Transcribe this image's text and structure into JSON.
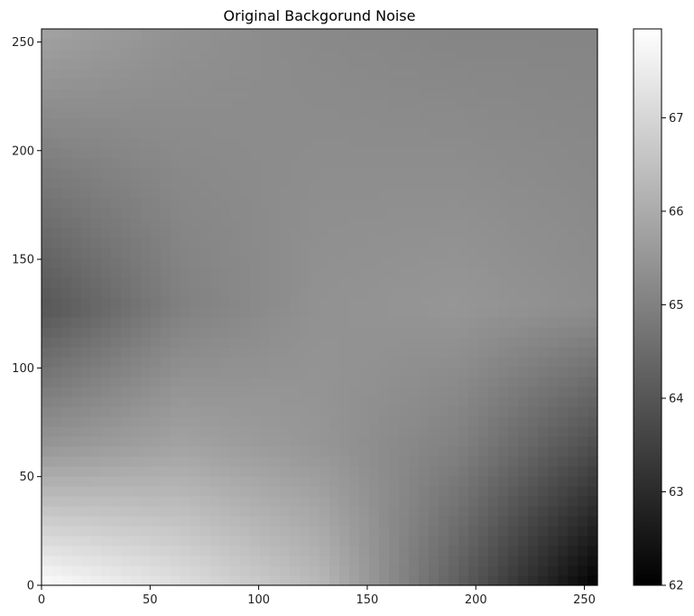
{
  "chart_data": {
    "type": "heatmap",
    "title": "Original Backgorund Noise",
    "xlabel": "",
    "ylabel": "",
    "colormap": "gray",
    "xlim": [
      0,
      256
    ],
    "ylim": [
      0,
      256
    ],
    "origin": "lower",
    "x_ticks": [
      "0",
      "50",
      "100",
      "150",
      "200",
      "250"
    ],
    "y_ticks": [
      "0",
      "50",
      "100",
      "150",
      "200",
      "250"
    ],
    "colorbar": {
      "vmin": 62.0,
      "vmax": 67.95,
      "ticks": [
        "62",
        "63",
        "64",
        "65",
        "66",
        "67"
      ]
    },
    "value_grid": {
      "x": [
        0,
        64,
        128,
        192,
        256
      ],
      "y": [
        0,
        64,
        128,
        192,
        256
      ],
      "values": [
        [
          67.9,
          67.2,
          66.3,
          64.2,
          62.0
        ],
        [
          65.5,
          65.8,
          65.5,
          65.0,
          63.8
        ],
        [
          64.0,
          65.0,
          65.4,
          65.5,
          65.3
        ],
        [
          64.9,
          65.2,
          65.3,
          65.3,
          65.2
        ],
        [
          65.8,
          65.4,
          65.2,
          65.1,
          65.1
        ]
      ]
    }
  }
}
